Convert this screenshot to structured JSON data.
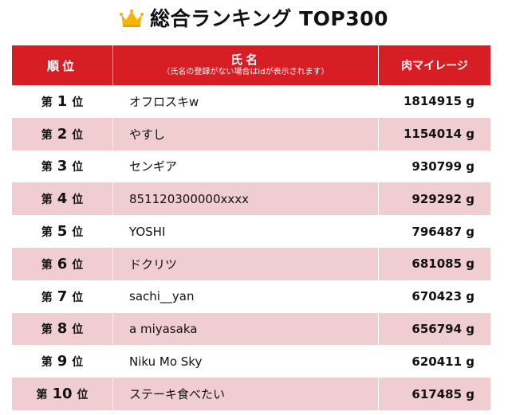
{
  "header": {
    "title": "総合ランキング TOP300",
    "icon": "crown-icon",
    "icon_color": "#f4b400"
  },
  "table": {
    "columns": {
      "rank": "順位",
      "name": "氏名",
      "name_note": "（氏名の登録がない場合はidが表示されます）",
      "miles": "肉マイレージ"
    },
    "rank_prefix": "第",
    "rank_suffix": "位",
    "rows": [
      {
        "rank": "1",
        "name": "オフロスキw",
        "miles": "1814915 g"
      },
      {
        "rank": "2",
        "name": "やすし",
        "miles": "1154014 g"
      },
      {
        "rank": "3",
        "name": "センギア",
        "miles": "930799 g"
      },
      {
        "rank": "4",
        "name": "851120300000xxxx",
        "miles": "929292 g"
      },
      {
        "rank": "5",
        "name": "YOSHI",
        "miles": "796487 g"
      },
      {
        "rank": "6",
        "name": "ドクリツ",
        "miles": "681085 g"
      },
      {
        "rank": "7",
        "name": "sachi__yan",
        "miles": "670423 g"
      },
      {
        "rank": "8",
        "name": "a miyasaka",
        "miles": "656794 g"
      },
      {
        "rank": "9",
        "name": "Niku Mo Sky",
        "miles": "620411 g"
      },
      {
        "rank": "10",
        "name": "ステーキ食べたい",
        "miles": "617485 g"
      }
    ]
  },
  "colors": {
    "header_bg": "#d81e25",
    "row_alt_bg": "#f0cdd0"
  }
}
